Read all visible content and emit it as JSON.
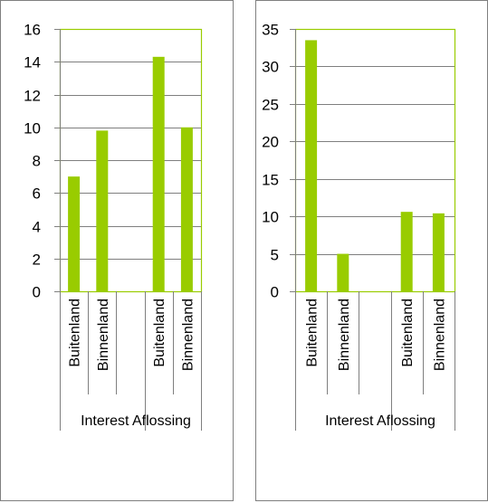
{
  "colors": {
    "bar": "#99cc00",
    "plot_border": "#99cc00",
    "grid": "#7f7f7f",
    "frame": "#7f7f7f"
  },
  "chart_data": [
    {
      "type": "bar",
      "categories": [
        "Buitenland",
        "Binnenland",
        "",
        "Buitenland",
        "Binnenland"
      ],
      "values": [
        7.0,
        9.8,
        null,
        14.3,
        10.0
      ],
      "groups": [
        {
          "label": "Interest",
          "categories": [
            "Buitenland",
            "Binnenland"
          ]
        },
        {
          "label": "Aflossing",
          "categories": [
            "Buitenland",
            "Binnenland"
          ]
        }
      ],
      "group_label_text": "Interest Aflossing",
      "yticks": [
        "0",
        "2",
        "4",
        "6",
        "8",
        "10",
        "12",
        "14",
        "16"
      ],
      "ylim": [
        0,
        16
      ],
      "grid": true,
      "title": "",
      "xlabel": "",
      "ylabel": ""
    },
    {
      "type": "bar",
      "categories": [
        "Buitenland",
        "Binnenland",
        "",
        "Buitenland",
        "Binnenland"
      ],
      "values": [
        33.5,
        5.0,
        null,
        10.6,
        10.4
      ],
      "groups": [
        {
          "label": "Interest",
          "categories": [
            "Buitenland",
            "Binnenland"
          ]
        },
        {
          "label": "Aflossing",
          "categories": [
            "Buitenland",
            "Binnenland"
          ]
        }
      ],
      "group_label_text": "Interest Aflossing",
      "yticks": [
        "0",
        "5",
        "10",
        "15",
        "20",
        "25",
        "30",
        "35"
      ],
      "ylim": [
        0,
        35
      ],
      "grid": true,
      "title": "",
      "xlabel": "",
      "ylabel": ""
    }
  ]
}
